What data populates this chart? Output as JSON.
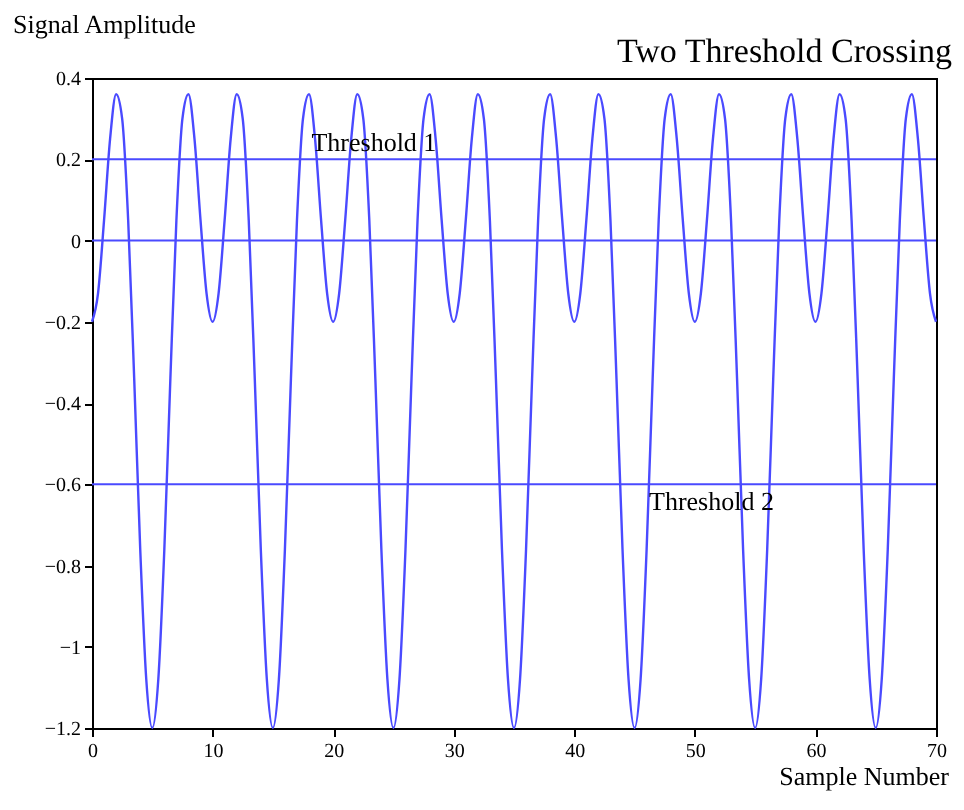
{
  "chart_data": {
    "type": "line",
    "title": "Two Threshold Crossing",
    "xlabel": "Sample Number",
    "ylabel": "Signal Amplitude",
    "x": [
      0,
      0.5,
      1,
      1.5,
      2,
      2.5,
      3,
      3.5,
      4,
      4.5,
      5,
      5.5,
      6,
      6.5,
      7,
      7.5,
      8,
      8.5,
      9,
      9.5,
      10,
      10.5,
      11,
      11.5,
      12,
      12.5,
      13,
      13.5,
      14,
      14.5,
      15,
      15.5,
      16,
      16.5,
      17,
      17.5,
      18,
      18.5,
      19,
      19.5,
      20,
      20.5,
      21,
      21.5,
      22,
      22.5,
      23,
      23.5,
      24,
      24.5,
      25,
      25.5,
      26,
      26.5,
      27,
      27.5,
      28,
      28.5,
      29,
      29.5,
      30,
      30.5,
      31,
      31.5,
      32,
      32.5,
      33,
      33.5,
      34,
      34.5,
      35,
      35.5,
      36,
      36.5,
      37,
      37.5,
      38,
      38.5,
      39,
      39.5,
      40,
      40.5,
      41,
      41.5,
      42,
      42.5,
      43,
      43.5,
      44,
      44.5,
      45,
      45.5,
      46,
      46.5,
      47,
      47.5,
      48,
      48.5,
      49,
      49.5,
      50,
      50.5,
      51,
      51.5,
      52,
      52.5,
      53,
      53.5,
      54,
      54.5,
      55,
      55.5,
      56,
      56.5,
      57,
      57.5,
      58,
      58.5,
      59,
      59.5,
      60,
      60.5,
      61,
      61.5,
      62,
      62.5,
      63,
      63.5,
      64,
      64.5,
      65,
      65.5,
      66,
      66.5,
      67,
      67.5,
      68,
      68.5,
      69,
      69.5,
      70
    ],
    "series": [
      {
        "color": "#4a4aff",
        "values": [
          -0.2,
          -0.13,
          0.05,
          0.25,
          0.36,
          0.3,
          0.05,
          -0.34,
          -0.76,
          -1.08,
          -1.2,
          -1.08,
          -0.76,
          -0.34,
          0.05,
          0.3,
          0.36,
          0.25,
          0.05,
          -0.13,
          -0.2,
          -0.13,
          0.05,
          0.25,
          0.36,
          0.3,
          0.05,
          -0.34,
          -0.76,
          -1.08,
          -1.2,
          -1.08,
          -0.76,
          -0.34,
          0.05,
          0.3,
          0.36,
          0.25,
          0.05,
          -0.13,
          -0.2,
          -0.13,
          0.05,
          0.25,
          0.36,
          0.3,
          0.05,
          -0.34,
          -0.76,
          -1.08,
          -1.2,
          -1.08,
          -0.76,
          -0.34,
          0.05,
          0.3,
          0.36,
          0.25,
          0.05,
          -0.13,
          -0.2,
          -0.13,
          0.05,
          0.25,
          0.36,
          0.3,
          0.05,
          -0.34,
          -0.76,
          -1.08,
          -1.2,
          -1.08,
          -0.76,
          -0.34,
          0.05,
          0.3,
          0.36,
          0.25,
          0.05,
          -0.13,
          -0.2,
          -0.13,
          0.05,
          0.25,
          0.36,
          0.3,
          0.05,
          -0.34,
          -0.76,
          -1.08,
          -1.2,
          -1.08,
          -0.76,
          -0.34,
          0.05,
          0.3,
          0.36,
          0.25,
          0.05,
          -0.13,
          -0.2,
          -0.13,
          0.05,
          0.25,
          0.36,
          0.3,
          0.05,
          -0.34,
          -0.76,
          -1.08,
          -1.2,
          -1.08,
          -0.76,
          -0.34,
          0.05,
          0.3,
          0.36,
          0.25,
          0.05,
          -0.13,
          -0.2,
          -0.13,
          0.05,
          0.25,
          0.36,
          0.3,
          0.05,
          -0.34,
          -0.76,
          -1.08,
          -1.2,
          -1.08,
          -0.76,
          -0.34,
          0.05,
          0.3,
          0.36,
          0.25,
          0.05,
          -0.13,
          -0.2
        ]
      }
    ],
    "xlim": [
      0,
      70
    ],
    "xticks": [
      0,
      10,
      20,
      30,
      40,
      50,
      60,
      70
    ],
    "ylim": [
      -1.2,
      0.4
    ],
    "yticks": [
      -1.2,
      -1,
      -0.8,
      -0.6,
      -0.4,
      -0.2,
      0,
      0.2,
      0.4
    ],
    "ref_lines": [
      {
        "axis": "y",
        "value": 0.2,
        "label": "Threshold 1",
        "color": "#4a4aff"
      },
      {
        "axis": "y",
        "value": 0,
        "color": "#4a4aff"
      },
      {
        "axis": "y",
        "value": -0.6,
        "label": "Threshold 2",
        "color": "#4a4aff"
      }
    ],
    "grid": false,
    "marker": "none",
    "line_style": "solid"
  }
}
